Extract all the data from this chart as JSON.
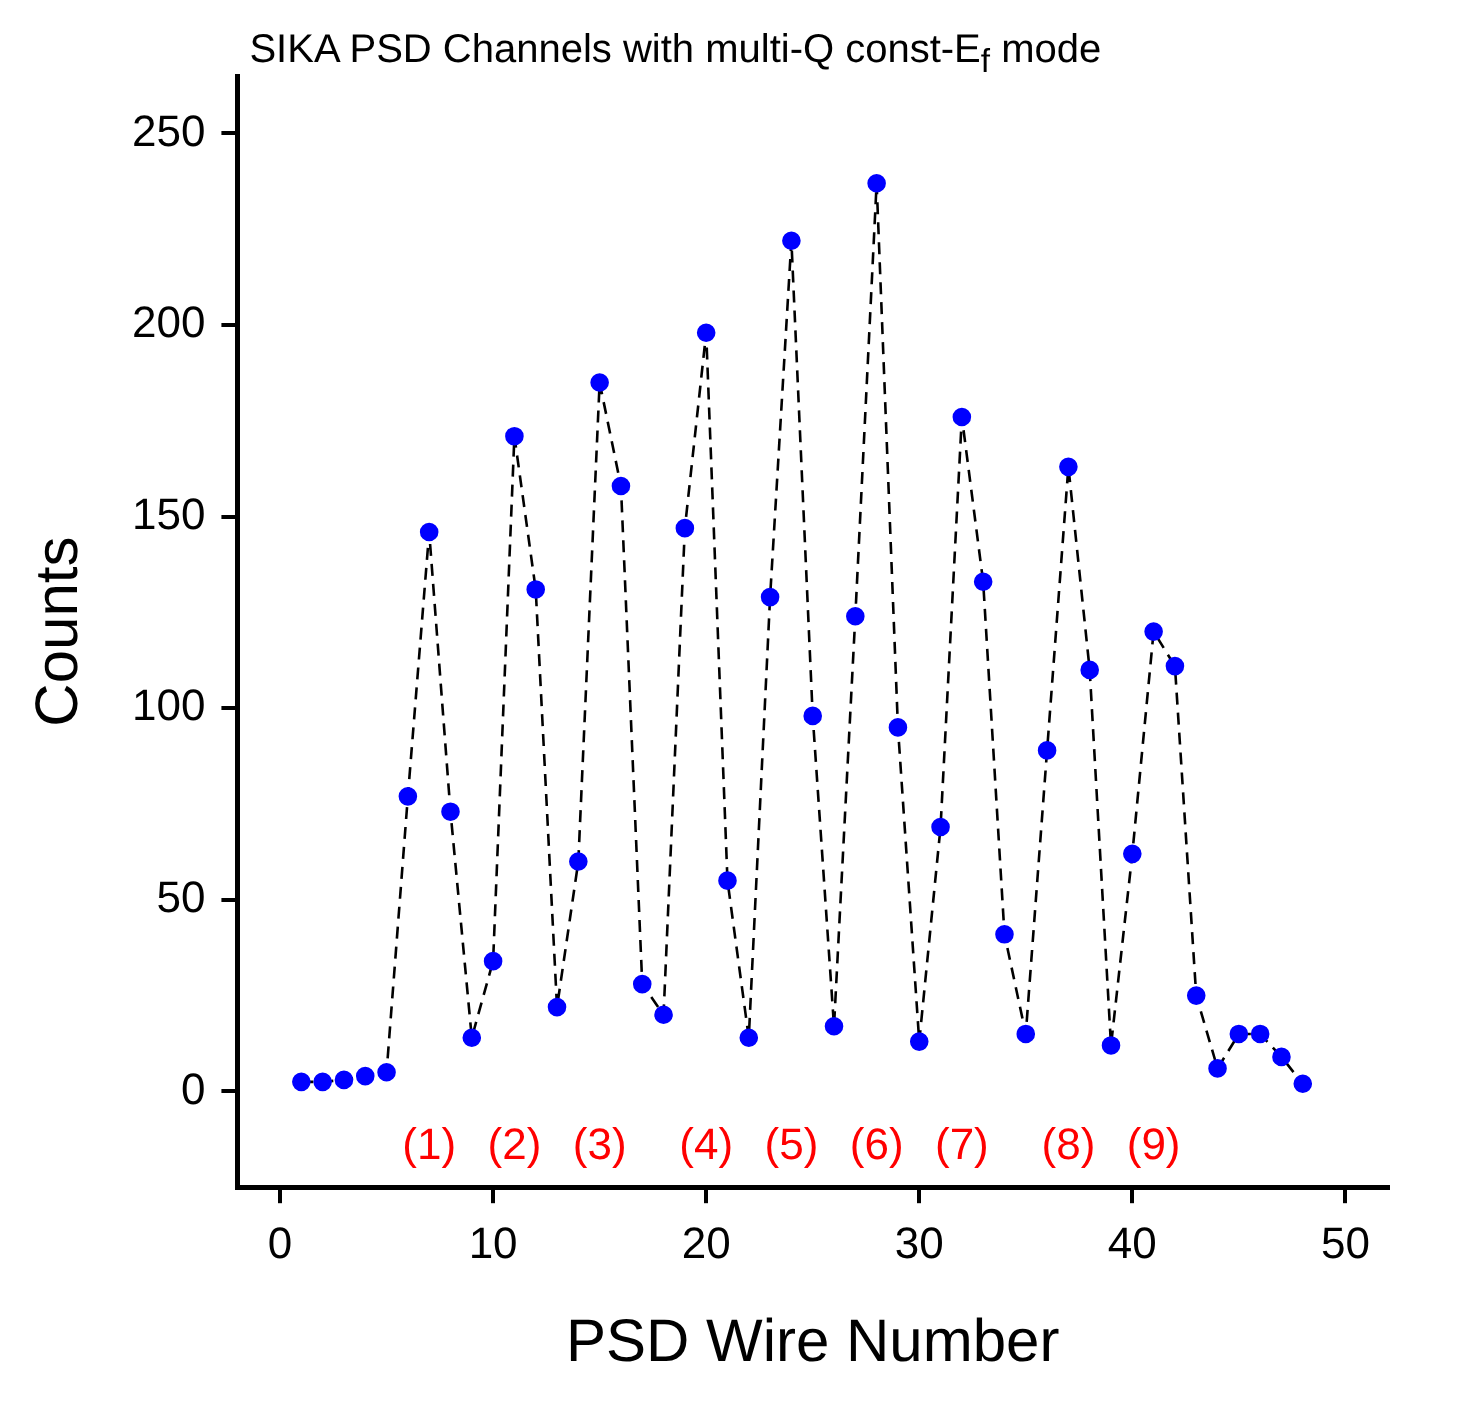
{
  "chart_data": {
    "type": "line",
    "title": "SIKA PSD Channels with multi-Q const-E$_{f}$ mode",
    "xlabel": "PSD Wire Number",
    "ylabel": "Counts",
    "x": [
      1,
      2,
      3,
      4,
      5,
      6,
      7,
      8,
      9,
      10,
      11,
      12,
      13,
      14,
      15,
      16,
      17,
      18,
      19,
      20,
      21,
      22,
      23,
      24,
      25,
      26,
      27,
      28,
      29,
      30,
      31,
      32,
      33,
      34,
      35,
      36,
      37,
      38,
      39,
      40,
      41,
      42,
      43,
      44,
      45,
      46,
      47,
      48
    ],
    "series": [
      {
        "color": "#0000ff",
        "values": [
          2.5,
          2.5,
          3,
          4,
          5,
          77,
          146,
          73,
          14,
          34,
          171,
          131,
          22,
          60,
          185,
          158,
          28,
          20,
          147,
          198,
          55,
          14,
          129,
          222,
          98,
          17,
          124,
          237,
          95,
          13,
          69,
          176,
          133,
          41,
          15,
          89,
          163,
          110,
          12,
          62,
          120,
          111,
          25,
          6,
          15,
          15,
          9,
          2
        ]
      }
    ],
    "xlim": [
      -2,
      52
    ],
    "xticks": [
      0,
      10,
      20,
      30,
      40,
      50
    ],
    "ylim": [
      -25,
      265
    ],
    "yticks": [
      0,
      50,
      100,
      150,
      200,
      250
    ],
    "grid": false,
    "legend": false,
    "marker": "circle",
    "line_style": "dashed",
    "annotations": [
      "(1)",
      "(2)",
      "(3)",
      "(4)",
      "(5)",
      "(6)",
      "(7)",
      "(8)",
      "(9)"
    ]
  }
}
